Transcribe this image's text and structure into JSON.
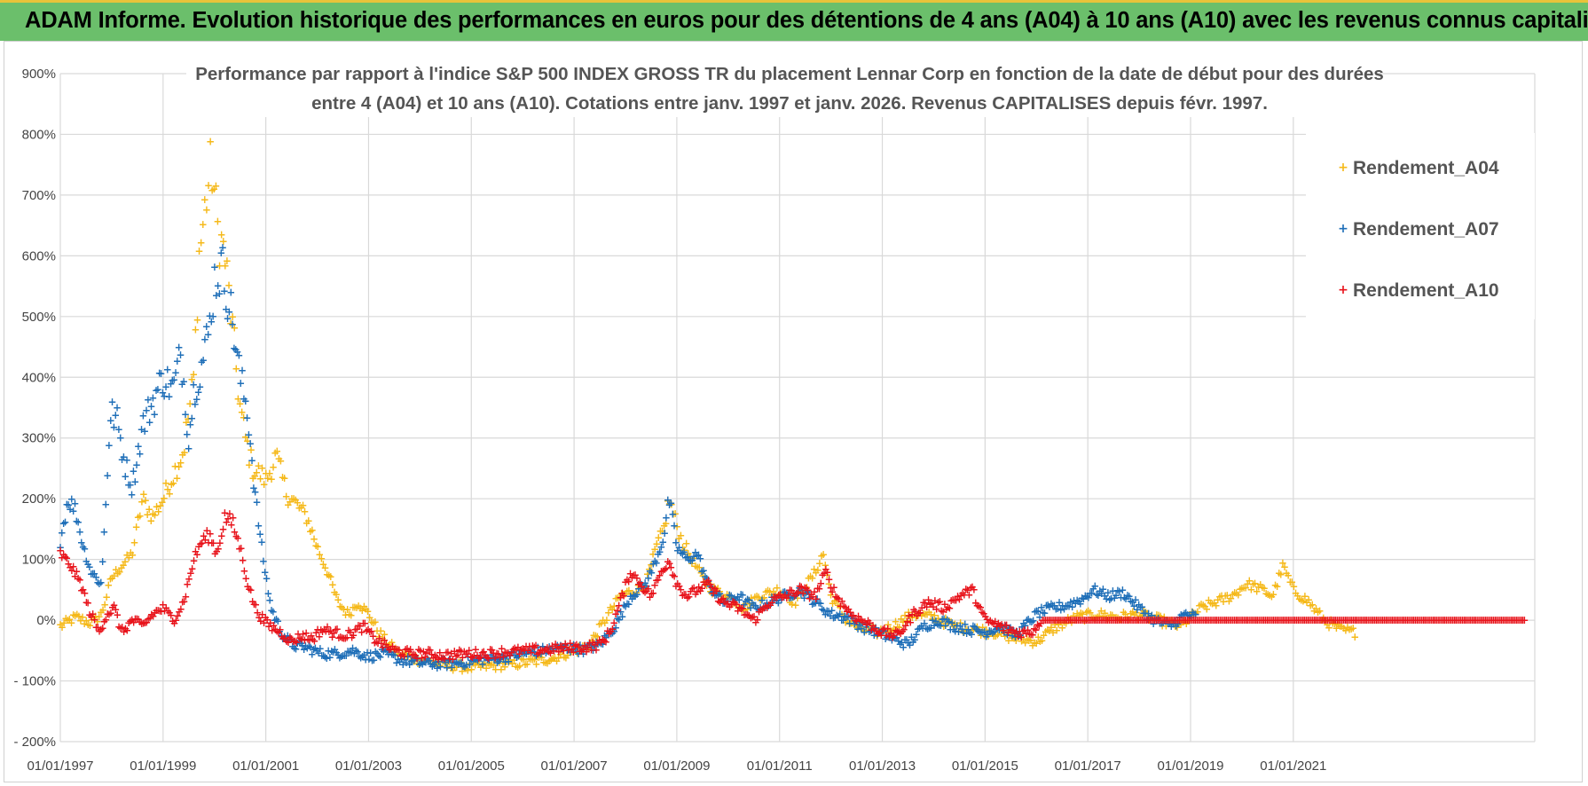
{
  "header": {
    "title": "ADAM Informe. Evolution historique des performances en euros pour des détentions de 4 ans (A04) à 10 ans (A10) avec les revenus connus capitalisés"
  },
  "colors": {
    "banner_bg": "#6bbf6b",
    "banner_border": "#e8c33a",
    "A04": "#f5b91a",
    "A07": "#1f6fb8",
    "A10": "#e8141c",
    "grid": "#d9d9d9"
  },
  "chart_data": {
    "type": "scatter",
    "title_line1": "Performance par rapport à l'indice S&P 500 INDEX GROSS TR  du placement Lennar Corp en fonction de la date de début pour des durées",
    "title_line2": "entre 4 (A04) et 10 ans (A10).  Cotations entre janv. 1997 et janv. 2026. Revenus CAPITALISES depuis févr. 1997.",
    "xlabel": "",
    "ylabel": "",
    "ylim": [
      -200,
      900
    ],
    "xlim": [
      1997.0,
      2025.7
    ],
    "y_ticks": [
      "900%",
      "800%",
      "700%",
      "600%",
      "500%",
      "400%",
      "300%",
      "200%",
      "100%",
      "0%",
      "- 100%",
      "- 200%"
    ],
    "y_tick_values": [
      900,
      800,
      700,
      600,
      500,
      400,
      300,
      200,
      100,
      0,
      -100,
      -200
    ],
    "x_ticks": [
      "01/01/1997",
      "01/01/1999",
      "01/01/2001",
      "01/01/2003",
      "01/01/2005",
      "01/01/2007",
      "01/01/2009",
      "01/01/2011",
      "01/01/2013",
      "01/01/2015",
      "01/01/2017",
      "01/01/2019",
      "01/01/2021"
    ],
    "x_tick_values": [
      1997,
      1999,
      2001,
      2003,
      2005,
      2007,
      2009,
      2011,
      2013,
      2015,
      2017,
      2019,
      2021
    ],
    "legend": [
      "Rendement_A04",
      "Rendement_A07",
      "Rendement_A10"
    ],
    "legend_position": "top-right",
    "series": [
      {
        "name": "Rendement_A04",
        "x": [
          1997.0,
          1997.3,
          1997.6,
          1997.8,
          1998.0,
          1998.2,
          1998.4,
          1998.6,
          1998.8,
          1999.0,
          1999.2,
          1999.4,
          1999.6,
          1999.7,
          1999.85,
          1999.95,
          2000.05,
          2000.2,
          2000.35,
          2000.5,
          2000.6,
          2000.75,
          2000.9,
          2001.0,
          2001.2,
          2001.4,
          2001.6,
          2001.8,
          2002.0,
          2002.2,
          2002.4,
          2002.6,
          2002.8,
          2003.0,
          2003.2,
          2003.4,
          2003.6,
          2003.8,
          2004.0,
          2004.3,
          2004.6,
          2005.0,
          2005.4,
          2005.8,
          2006.2,
          2006.6,
          2007.0,
          2007.3,
          2007.6,
          2007.9,
          2008.2,
          2008.4,
          2008.6,
          2008.75,
          2008.85,
          2008.95,
          2009.1,
          2009.3,
          2009.5,
          2009.7,
          2010.0,
          2010.3,
          2010.6,
          2011.0,
          2011.3,
          2011.5,
          2011.7,
          2011.85,
          2012.0,
          2012.3,
          2012.6,
          2012.9,
          2013.2,
          2013.6,
          2014.0,
          2014.4,
          2014.8,
          2015.2,
          2015.6,
          2016.0,
          2016.4,
          2016.8,
          2017.2,
          2017.6,
          2018.0,
          2018.4,
          2018.8,
          2019.2,
          2019.5,
          2019.8,
          2020.1,
          2020.4,
          2020.6,
          2020.8,
          2021.0,
          2021.3,
          2021.6,
          2021.9,
          2022.2
        ],
        "y": [
          -10,
          5,
          -5,
          10,
          70,
          90,
          110,
          200,
          170,
          200,
          240,
          280,
          400,
          600,
          700,
          750,
          650,
          600,
          480,
          350,
          300,
          250,
          240,
          230,
          270,
          210,
          190,
          170,
          120,
          80,
          30,
          10,
          30,
          10,
          -20,
          -40,
          -55,
          -60,
          -65,
          -70,
          -75,
          -78,
          -75,
          -72,
          -68,
          -62,
          -50,
          -40,
          0,
          40,
          50,
          60,
          120,
          150,
          200,
          170,
          130,
          100,
          70,
          50,
          40,
          20,
          40,
          50,
          30,
          55,
          80,
          110,
          40,
          0,
          -15,
          -20,
          -10,
          10,
          5,
          -10,
          -15,
          -20,
          -30,
          -35,
          -10,
          5,
          10,
          5,
          10,
          0,
          -10,
          20,
          30,
          40,
          60,
          50,
          40,
          90,
          50,
          30,
          0,
          -15,
          -20
        ]
      },
      {
        "name": "Rendement_A07",
        "x": [
          1997.0,
          1997.15,
          1997.3,
          1997.45,
          1997.6,
          1997.8,
          1997.95,
          1998.0,
          1998.1,
          1998.25,
          1998.4,
          1998.6,
          1998.8,
          1999.0,
          1999.2,
          1999.35,
          1999.5,
          1999.6,
          1999.75,
          1999.9,
          2000.0,
          2000.15,
          2000.3,
          2000.5,
          2000.65,
          2000.8,
          2000.95,
          2001.1,
          2001.3,
          2001.5,
          2001.8,
          2002.1,
          2002.4,
          2002.7,
          2003.0,
          2003.3,
          2003.6,
          2004.0,
          2004.4,
          2004.8,
          2005.2,
          2005.6,
          2006.0,
          2006.4,
          2006.8,
          2007.2,
          2007.5,
          2007.8,
          2008.1,
          2008.4,
          2008.6,
          2008.75,
          2008.85,
          2009.0,
          2009.2,
          2009.4,
          2009.6,
          2009.9,
          2010.2,
          2010.5,
          2010.8,
          2011.1,
          2011.4,
          2011.7,
          2012.0,
          2012.3,
          2012.6,
          2012.9,
          2013.2,
          2013.5,
          2013.8,
          2014.1,
          2014.4,
          2014.7,
          2015.0,
          2015.3,
          2015.6,
          2016.0,
          2016.3,
          2016.6,
          2016.9,
          2017.1,
          2017.4,
          2017.7,
          2018.0,
          2018.3,
          2018.6,
          2018.9,
          2019.1
        ],
        "y": [
          130,
          200,
          180,
          120,
          80,
          60,
          300,
          340,
          330,
          260,
          220,
          320,
          360,
          400,
          380,
          440,
          300,
          380,
          420,
          480,
          560,
          580,
          520,
          400,
          340,
          200,
          100,
          20,
          -20,
          -40,
          -45,
          -55,
          -55,
          -50,
          -60,
          -55,
          -65,
          -70,
          -72,
          -70,
          -65,
          -62,
          -55,
          -50,
          -45,
          -48,
          -40,
          -10,
          40,
          60,
          100,
          140,
          200,
          120,
          100,
          110,
          60,
          30,
          40,
          20,
          30,
          40,
          50,
          30,
          10,
          5,
          -10,
          -20,
          -30,
          -40,
          -10,
          0,
          -10,
          -15,
          -20,
          -10,
          -25,
          10,
          20,
          25,
          35,
          50,
          40,
          45,
          20,
          0,
          -10,
          10,
          5
        ]
      },
      {
        "name": "Rendement_A10",
        "x": [
          1997.0,
          1997.2,
          1997.4,
          1997.55,
          1997.75,
          1997.9,
          1998.05,
          1998.2,
          1998.4,
          1998.6,
          1998.8,
          1999.0,
          1999.2,
          1999.4,
          1999.6,
          1999.75,
          1999.9,
          2000.05,
          2000.2,
          2000.35,
          2000.5,
          2000.65,
          2000.8,
          2000.95,
          2001.1,
          2001.3,
          2001.5,
          2001.7,
          2001.9,
          2002.1,
          2002.3,
          2002.6,
          2002.9,
          2003.1,
          2003.3,
          2003.5,
          2003.8,
          2004.1,
          2004.5,
          2004.9,
          2005.3,
          2005.7,
          2006.1,
          2006.5,
          2006.9,
          2007.2,
          2007.5,
          2007.7,
          2007.9,
          2008.1,
          2008.3,
          2008.5,
          2008.7,
          2008.85,
          2009.0,
          2009.2,
          2009.4,
          2009.6,
          2009.9,
          2010.2,
          2010.5,
          2010.8,
          2011.1,
          2011.4,
          2011.7,
          2011.9,
          2012.1,
          2012.4,
          2012.7,
          2013.0,
          2013.3,
          2013.6,
          2013.9,
          2014.2,
          2014.5,
          2014.75,
          2015.0,
          2015.3,
          2015.6,
          2015.9,
          2016.1,
          2016.5,
          2017.0,
          2017.5,
          2018.0,
          2018.5,
          2019.0,
          2019.5,
          2020.0,
          2020.5,
          2021.0,
          2021.5,
          2022.0,
          2022.5,
          2023.0,
          2023.5,
          2024.0,
          2024.5,
          2025.0,
          2025.5
        ],
        "y": [
          110,
          90,
          60,
          20,
          -20,
          10,
          20,
          -20,
          0,
          -10,
          10,
          20,
          0,
          30,
          100,
          130,
          140,
          110,
          170,
          160,
          120,
          60,
          20,
          0,
          -10,
          -20,
          -35,
          -25,
          -30,
          -15,
          -20,
          -25,
          -10,
          -30,
          -40,
          -50,
          -55,
          -55,
          -58,
          -55,
          -55,
          -52,
          -50,
          -48,
          -45,
          -45,
          -40,
          -20,
          30,
          80,
          60,
          40,
          80,
          100,
          60,
          40,
          50,
          60,
          30,
          20,
          0,
          30,
          40,
          50,
          40,
          80,
          40,
          10,
          -5,
          -20,
          -25,
          10,
          30,
          20,
          40,
          50,
          0,
          -10,
          -20,
          -20,
          0,
          0,
          0,
          0,
          0,
          0,
          0,
          0,
          0,
          0,
          0,
          0,
          0,
          0,
          0,
          0,
          0,
          0,
          0,
          0
        ]
      }
    ]
  }
}
